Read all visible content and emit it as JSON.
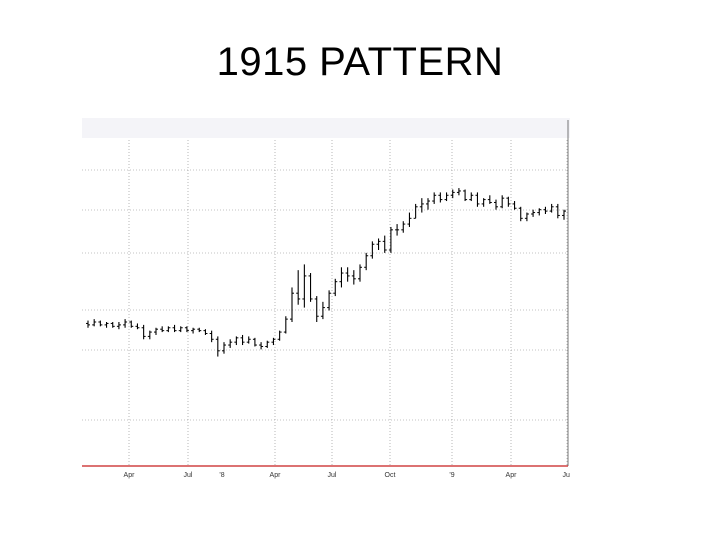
{
  "slide": {
    "title": "1915 PATTERN"
  },
  "chart_data": {
    "type": "ohlc",
    "title": "",
    "header_text": "",
    "xlabel": "",
    "ylabel": "",
    "x_tick_labels": [
      "Apr",
      "Jul",
      "'8",
      "Apr",
      "Jul",
      "Oct",
      "'9",
      "Apr",
      "Jul"
    ],
    "ylim": [
      0,
      100
    ],
    "grid": true,
    "baseline_color": "#c81e1e",
    "bar_color": "#000000",
    "series": [
      {
        "values": [
          {
            "o": 49.5,
            "h": 50.5,
            "l": 48,
            "c": 49
          },
          {
            "o": 49,
            "h": 51,
            "l": 48.5,
            "c": 50
          },
          {
            "o": 50,
            "h": 50.5,
            "l": 48.5,
            "c": 49
          },
          {
            "o": 49,
            "h": 50,
            "l": 48,
            "c": 49.5
          },
          {
            "o": 49.5,
            "h": 50,
            "l": 48,
            "c": 48.5
          },
          {
            "o": 48.5,
            "h": 50,
            "l": 47.5,
            "c": 49
          },
          {
            "o": 49,
            "h": 51,
            "l": 48,
            "c": 50
          },
          {
            "o": 50,
            "h": 50.5,
            "l": 48,
            "c": 48.5
          },
          {
            "o": 48.5,
            "h": 49.5,
            "l": 47.5,
            "c": 48
          },
          {
            "o": 48,
            "h": 49,
            "l": 44,
            "c": 45
          },
          {
            "o": 45,
            "h": 47,
            "l": 44,
            "c": 46.5
          },
          {
            "o": 46.5,
            "h": 48,
            "l": 45.5,
            "c": 47.5
          },
          {
            "o": 47.5,
            "h": 48.5,
            "l": 46.5,
            "c": 47
          },
          {
            "o": 47,
            "h": 48.5,
            "l": 46.5,
            "c": 48
          },
          {
            "o": 48,
            "h": 49,
            "l": 46.5,
            "c": 47
          },
          {
            "o": 47,
            "h": 48.5,
            "l": 46.5,
            "c": 48
          },
          {
            "o": 48,
            "h": 48.5,
            "l": 46.5,
            "c": 47
          },
          {
            "o": 47,
            "h": 48,
            "l": 46,
            "c": 47.5
          },
          {
            "o": 47.5,
            "h": 48,
            "l": 46.5,
            "c": 47
          },
          {
            "o": 47,
            "h": 47.5,
            "l": 45.5,
            "c": 46
          },
          {
            "o": 46,
            "h": 47,
            "l": 43,
            "c": 44
          },
          {
            "o": 44,
            "h": 45,
            "l": 38,
            "c": 40
          },
          {
            "o": 40,
            "h": 43,
            "l": 39,
            "c": 42
          },
          {
            "o": 42,
            "h": 44,
            "l": 41,
            "c": 43
          },
          {
            "o": 43,
            "h": 45,
            "l": 42,
            "c": 44.5
          },
          {
            "o": 44.5,
            "h": 45.5,
            "l": 42,
            "c": 43
          },
          {
            "o": 43,
            "h": 45,
            "l": 42.5,
            "c": 44
          },
          {
            "o": 44,
            "h": 44.5,
            "l": 41.5,
            "c": 42
          },
          {
            "o": 42,
            "h": 43,
            "l": 40.5,
            "c": 41.5
          },
          {
            "o": 41.5,
            "h": 43.5,
            "l": 41,
            "c": 43
          },
          {
            "o": 43,
            "h": 44.5,
            "l": 42,
            "c": 44
          },
          {
            "o": 44,
            "h": 47,
            "l": 43.5,
            "c": 46.5
          },
          {
            "o": 46.5,
            "h": 52,
            "l": 46,
            "c": 51
          },
          {
            "o": 51,
            "h": 62,
            "l": 50,
            "c": 60
          },
          {
            "o": 60,
            "h": 68,
            "l": 56,
            "c": 58
          },
          {
            "o": 58,
            "h": 70,
            "l": 55,
            "c": 66
          },
          {
            "o": 66,
            "h": 67,
            "l": 57,
            "c": 58
          },
          {
            "o": 58,
            "h": 59,
            "l": 50,
            "c": 52
          },
          {
            "o": 52,
            "h": 57,
            "l": 51,
            "c": 55
          },
          {
            "o": 55,
            "h": 61,
            "l": 54,
            "c": 60
          },
          {
            "o": 60,
            "h": 65,
            "l": 59,
            "c": 64
          },
          {
            "o": 64,
            "h": 69,
            "l": 62,
            "c": 67
          },
          {
            "o": 67,
            "h": 69,
            "l": 64,
            "c": 66
          },
          {
            "o": 66,
            "h": 68,
            "l": 63,
            "c": 65
          },
          {
            "o": 65,
            "h": 70,
            "l": 64,
            "c": 69
          },
          {
            "o": 69,
            "h": 74,
            "l": 68,
            "c": 73
          },
          {
            "o": 73,
            "h": 78,
            "l": 72,
            "c": 77
          },
          {
            "o": 77,
            "h": 79,
            "l": 75,
            "c": 78
          },
          {
            "o": 78,
            "h": 80,
            "l": 74,
            "c": 75
          },
          {
            "o": 75,
            "h": 83,
            "l": 74,
            "c": 82
          },
          {
            "o": 82,
            "h": 84,
            "l": 80,
            "c": 82
          },
          {
            "o": 82,
            "h": 85,
            "l": 81,
            "c": 84
          },
          {
            "o": 84,
            "h": 88,
            "l": 83,
            "c": 86
          },
          {
            "o": 86,
            "h": 91,
            "l": 86,
            "c": 90
          },
          {
            "o": 90,
            "h": 93,
            "l": 88,
            "c": 91
          },
          {
            "o": 91,
            "h": 93,
            "l": 89,
            "c": 92
          },
          {
            "o": 92,
            "h": 95,
            "l": 91,
            "c": 94
          },
          {
            "o": 94,
            "h": 95,
            "l": 91.5,
            "c": 92.5
          },
          {
            "o": 92.5,
            "h": 95,
            "l": 92,
            "c": 94
          },
          {
            "o": 94,
            "h": 96,
            "l": 93,
            "c": 95
          },
          {
            "o": 95,
            "h": 96.5,
            "l": 94,
            "c": 95.5
          },
          {
            "o": 95.5,
            "h": 96,
            "l": 92,
            "c": 92.5
          },
          {
            "o": 92.5,
            "h": 95,
            "l": 92,
            "c": 94
          },
          {
            "o": 94,
            "h": 95,
            "l": 90,
            "c": 91
          },
          {
            "o": 91,
            "h": 93,
            "l": 90,
            "c": 92.5
          },
          {
            "o": 92.5,
            "h": 94,
            "l": 91,
            "c": 91.5
          },
          {
            "o": 91.5,
            "h": 92.5,
            "l": 89,
            "c": 90
          },
          {
            "o": 90,
            "h": 94,
            "l": 89.5,
            "c": 93
          },
          {
            "o": 93,
            "h": 93.5,
            "l": 90,
            "c": 91
          },
          {
            "o": 91,
            "h": 92,
            "l": 89,
            "c": 89.5
          },
          {
            "o": 89.5,
            "h": 90,
            "l": 85,
            "c": 86
          },
          {
            "o": 86,
            "h": 88,
            "l": 85,
            "c": 87.5
          },
          {
            "o": 87.5,
            "h": 89,
            "l": 86.5,
            "c": 88
          },
          {
            "o": 88,
            "h": 89.5,
            "l": 87,
            "c": 89
          },
          {
            "o": 89,
            "h": 90,
            "l": 87.5,
            "c": 88.5
          },
          {
            "o": 88.5,
            "h": 91,
            "l": 88,
            "c": 90
          },
          {
            "o": 90,
            "h": 91,
            "l": 86,
            "c": 87
          },
          {
            "o": 87,
            "h": 89,
            "l": 85.5,
            "c": 88.5
          }
        ]
      }
    ]
  }
}
